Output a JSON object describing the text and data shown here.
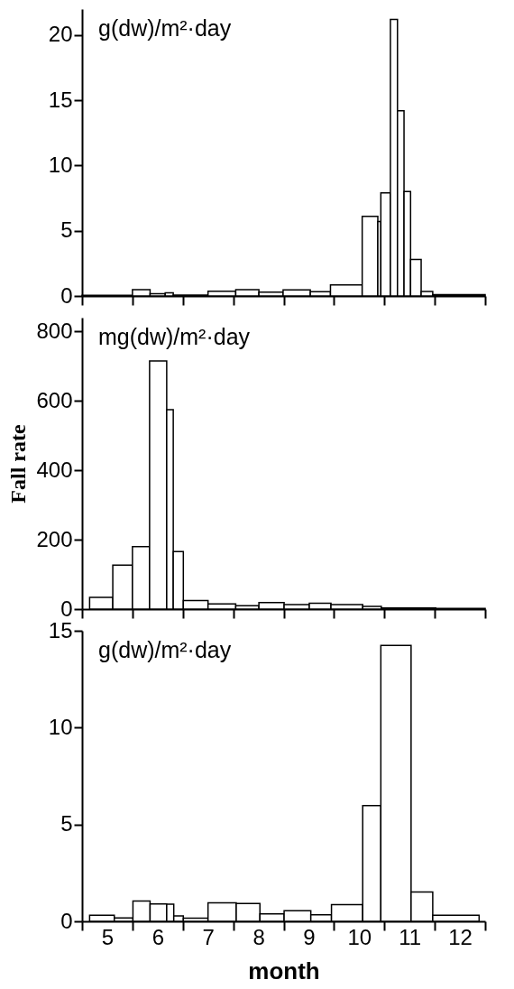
{
  "chart_data": [
    {
      "type": "histogram",
      "color": "#ffffff",
      "annotations": [
        "g(dw)/m²·day"
      ],
      "bins": [
        4.5,
        5.5,
        5.85,
        6.15,
        6.31,
        7.0,
        7.55,
        8.01,
        8.49,
        9.03,
        9.43,
        10.06,
        10.37,
        10.43,
        10.62,
        10.76,
        10.89,
        11.02,
        11.23,
        11.46,
        12.5
      ],
      "values": [
        0.05,
        0.48,
        0.18,
        0.25,
        0.07,
        0.37,
        0.48,
        0.3,
        0.46,
        0.32,
        0.85,
        6.1,
        5.7,
        7.9,
        21.2,
        14.2,
        8.0,
        2.8,
        0.35,
        0.1
      ],
      "xlim": [
        4.5,
        12.5
      ],
      "xticks": [
        {
          "value": 4.5,
          "label": null
        },
        {
          "value": 5.5,
          "label": null
        },
        {
          "value": 6.5,
          "label": null
        },
        {
          "value": 7.5,
          "label": null
        },
        {
          "value": 8.5,
          "label": null
        },
        {
          "value": 9.5,
          "label": null
        },
        {
          "value": 10.5,
          "label": null
        },
        {
          "value": 11.5,
          "label": null
        },
        {
          "value": 12.5,
          "label": null
        },
        5,
        6,
        7,
        8,
        9,
        10,
        11,
        12
      ],
      "ylim": [
        0,
        22
      ],
      "yticks": [
        0,
        5,
        10,
        15,
        20
      ],
      "tick_labels": "y"
    },
    {
      "type": "histogram",
      "color": "#ffffff",
      "annotations": [
        "mg(dw)/m²·day"
      ],
      "ylabel": "Fall rate",
      "bins": [
        4.65,
        5.11,
        5.5,
        5.84,
        6.18,
        6.31,
        6.51,
        7.0,
        7.55,
        8.01,
        8.51,
        9.01,
        9.44,
        10.07,
        10.44,
        11.52,
        12.5
      ],
      "values": [
        34,
        127,
        180,
        715,
        575,
        166,
        25,
        15,
        10,
        19,
        13,
        17,
        13,
        8,
        3,
        2
      ],
      "xlim": [
        4.5,
        12.5
      ],
      "xticks": [
        {
          "value": 4.5,
          "label": null
        },
        {
          "value": 5.5,
          "label": null
        },
        {
          "value": 6.5,
          "label": null
        },
        {
          "value": 7.5,
          "label": null
        },
        {
          "value": 8.5,
          "label": null
        },
        {
          "value": 9.5,
          "label": null
        },
        {
          "value": 10.5,
          "label": null
        },
        {
          "value": 11.5,
          "label": null
        },
        {
          "value": 12.5,
          "label": null
        },
        5,
        6,
        7,
        8,
        9,
        10,
        11,
        12
      ],
      "ylim": [
        0,
        840
      ],
      "yticks": [
        0,
        200,
        400,
        600,
        800
      ],
      "tick_labels": "y"
    },
    {
      "type": "histogram",
      "color": "#ffffff",
      "annotations": [
        "g(dw)/m²·day"
      ],
      "xlabel": "month",
      "bins": [
        4.65,
        5.14,
        5.51,
        5.85,
        6.18,
        6.32,
        6.51,
        7.0,
        7.56,
        8.03,
        8.51,
        9.04,
        9.45,
        10.07,
        10.43,
        11.03,
        11.46,
        12.38
      ],
      "values": [
        0.31,
        0.17,
        1.05,
        0.9,
        0.89,
        0.28,
        0.16,
        0.95,
        0.92,
        0.39,
        0.55,
        0.34,
        0.86,
        5.97,
        14.24,
        1.51,
        0.31
      ],
      "xlim": [
        4.5,
        12.5
      ],
      "xticks": [
        {
          "value": 4.5,
          "label": null
        },
        {
          "value": 5.5,
          "label": null
        },
        {
          "value": 6.5,
          "label": null
        },
        {
          "value": 7.5,
          "label": null
        },
        {
          "value": 8.5,
          "label": null
        },
        {
          "value": 9.5,
          "label": null
        },
        {
          "value": 10.5,
          "label": null
        },
        {
          "value": 11.5,
          "label": null
        },
        {
          "value": 12.5,
          "label": null
        },
        5,
        6,
        7,
        8,
        9,
        10,
        11,
        12
      ],
      "ylim": [
        0,
        15
      ],
      "yticks": [
        0,
        5,
        10,
        15
      ]
    }
  ]
}
